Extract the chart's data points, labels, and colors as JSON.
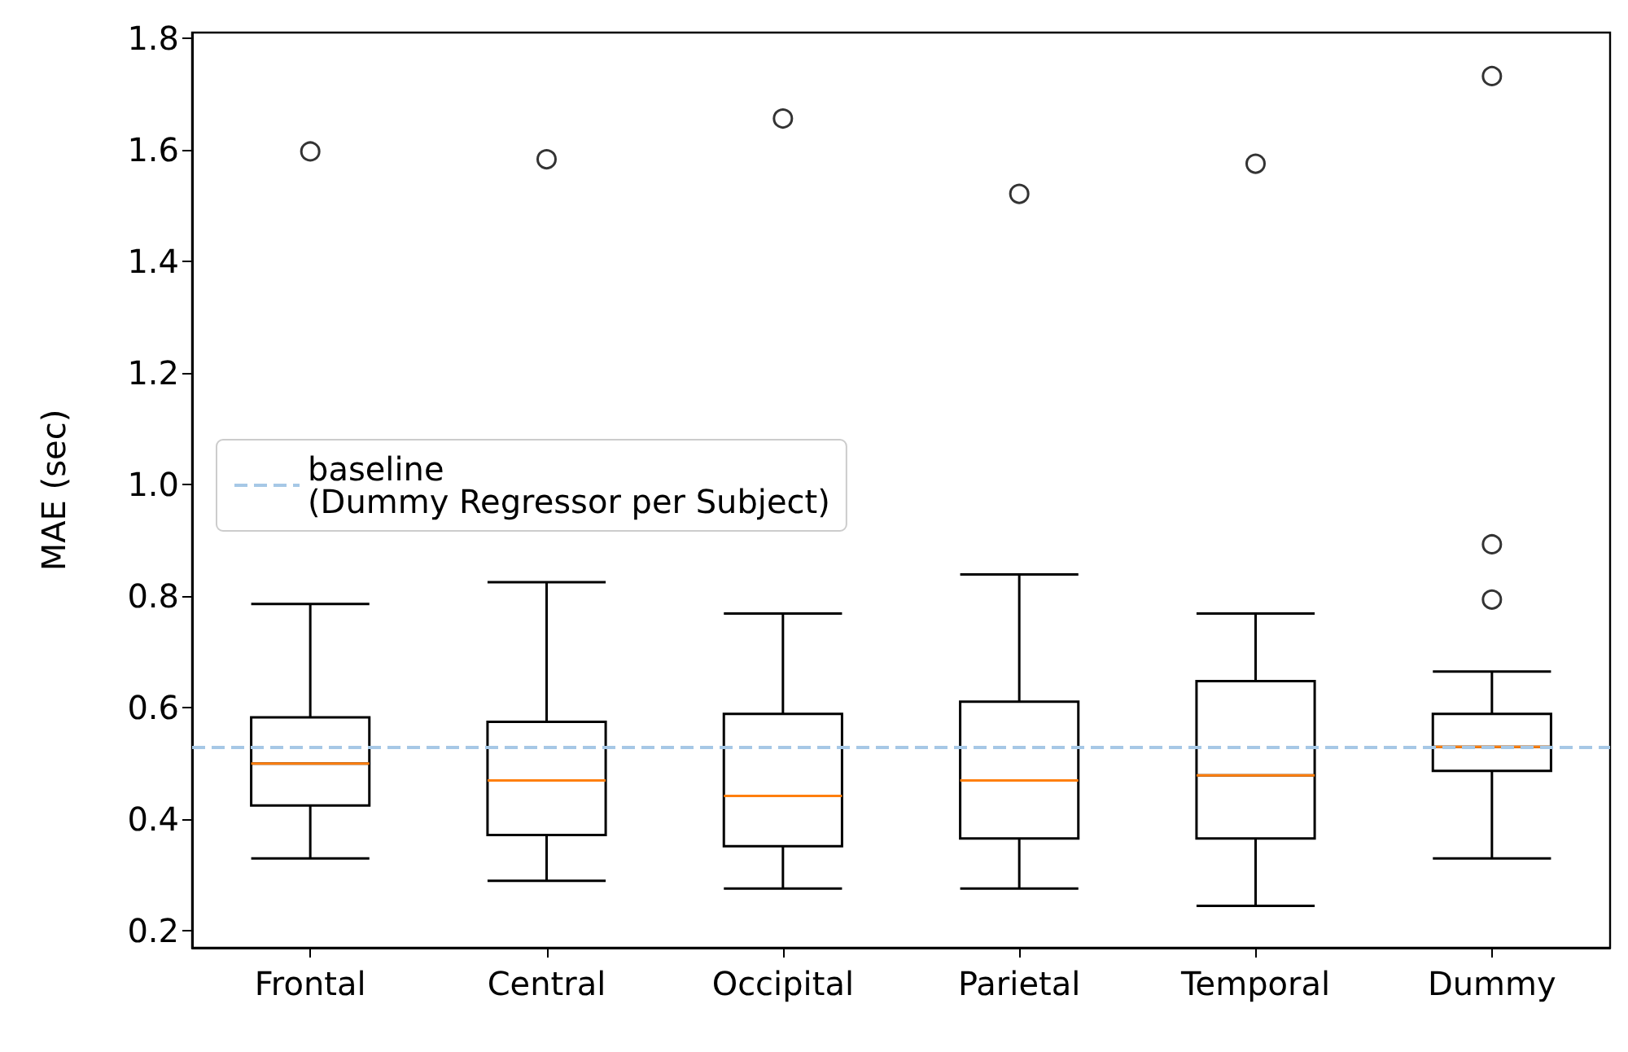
{
  "chart_data": {
    "type": "box",
    "ylabel": "MAE (sec)",
    "categories": [
      "Frontal",
      "Central",
      "Occipital",
      "Parietal",
      "Temporal",
      "Dummy"
    ],
    "series": [
      {
        "color": "#000000",
        "boxes": [
          {
            "low": 0.33,
            "q1": 0.425,
            "median": 0.5,
            "q3": 0.583,
            "high": 0.786,
            "outliers": [
              1.597
            ]
          },
          {
            "low": 0.29,
            "q1": 0.372,
            "median": 0.47,
            "q3": 0.575,
            "high": 0.825,
            "outliers": [
              1.583
            ]
          },
          {
            "low": 0.276,
            "q1": 0.352,
            "median": 0.442,
            "q3": 0.589,
            "high": 0.769,
            "outliers": [
              1.656
            ]
          },
          {
            "low": 0.276,
            "q1": 0.366,
            "median": 0.47,
            "q3": 0.611,
            "high": 0.839,
            "outliers": [
              1.521
            ]
          },
          {
            "low": 0.245,
            "q1": 0.366,
            "median": 0.479,
            "q3": 0.648,
            "high": 0.769,
            "outliers": [
              1.575
            ]
          },
          {
            "low": 0.33,
            "q1": 0.487,
            "median": 0.53,
            "q3": 0.589,
            "high": 0.665,
            "outliers": [
              1.732,
              0.893,
              0.794
            ]
          }
        ]
      }
    ],
    "ylim": [
      0.17,
      1.81
    ],
    "yticks": [
      0.2,
      0.4,
      0.6,
      0.8,
      {
        "value": 1,
        "label": "1.0"
      },
      1.2,
      1.4,
      1.6,
      1.8
    ],
    "ref_lines": [
      {
        "axis": "y",
        "value": 0.532,
        "label": "baseline\n(Dummy Regressor per Subject)",
        "color": "#a6c8e6",
        "line_style": "dashed"
      }
    ],
    "legend": "left",
    "grid": false
  }
}
